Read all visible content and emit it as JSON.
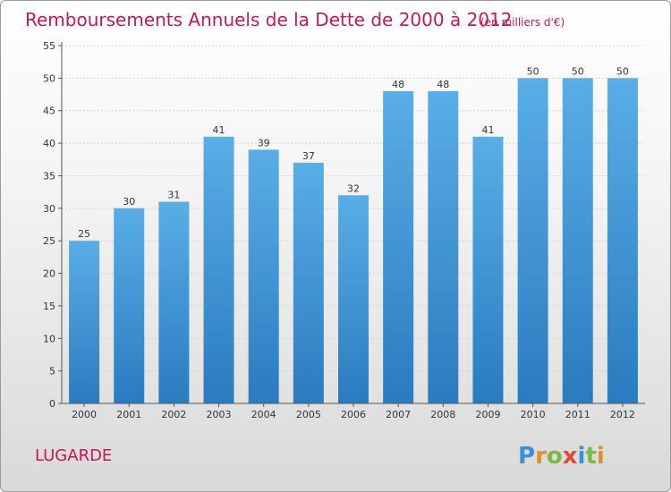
{
  "chart_data": {
    "type": "bar",
    "title": "Remboursements Annuels de la Dette de 2000 à 2012",
    "subtitle": "(en milliers d'€)",
    "categories": [
      "2000",
      "2001",
      "2002",
      "2003",
      "2004",
      "2005",
      "2006",
      "2007",
      "2008",
      "2009",
      "2010",
      "2011",
      "2012"
    ],
    "values": [
      25,
      30,
      31,
      41,
      39,
      37,
      32,
      48,
      48,
      41,
      50,
      50,
      50
    ],
    "ylim": [
      0,
      55
    ],
    "yticks": [
      0,
      5,
      10,
      15,
      20,
      25,
      30,
      35,
      40,
      45,
      50,
      55
    ],
    "xlabel": "",
    "ylabel": "",
    "grid": true,
    "bar_color_top": "#5aaee6",
    "bar_color_bottom": "#2a7bbf"
  },
  "footer": {
    "place_name": "LUGARDE",
    "logo_letters": [
      "P",
      "r",
      "o",
      "x",
      "i",
      "t",
      "i"
    ],
    "logo_colors": [
      "#3a8fd6",
      "#e0902a",
      "#7cba3c",
      "#e04a3a",
      "#3a8fd6",
      "#7cba3c",
      "#e0902a"
    ]
  }
}
